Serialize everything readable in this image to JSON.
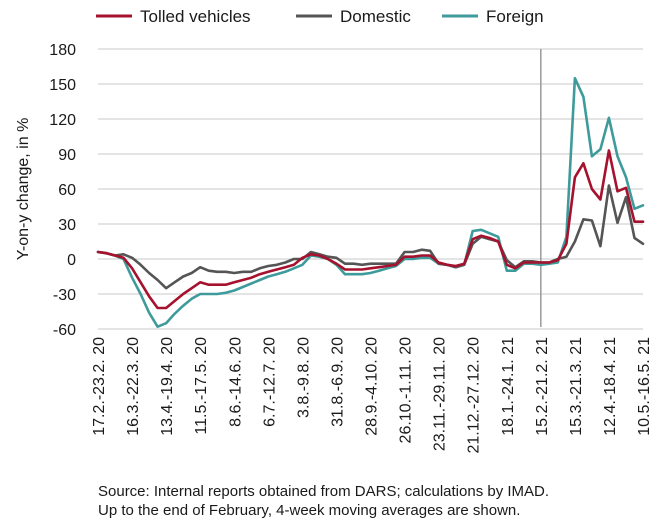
{
  "chart_data": {
    "type": "line",
    "title": "",
    "ylabel": "Y-on-y change, in %",
    "xlabel": "",
    "ylim": [
      -60,
      180
    ],
    "yticks": [
      180,
      150,
      120,
      90,
      60,
      30,
      0,
      -30,
      -60
    ],
    "grid": "horizontal",
    "legend_position": "top",
    "period_marker_after_point": 52,
    "x_tick_labels": [
      {
        "index": 0,
        "label": "17.2.-23.2. 20"
      },
      {
        "index": 4,
        "label": "16.3.-22.3. 20"
      },
      {
        "index": 8,
        "label": "13.4.-19.4. 20"
      },
      {
        "index": 12,
        "label": "11.5.-17.5. 20"
      },
      {
        "index": 16,
        "label": "8.6.-14.6. 20"
      },
      {
        "index": 20,
        "label": "6.7.-12.7. 20"
      },
      {
        "index": 24,
        "label": "3.8.-9.8. 20"
      },
      {
        "index": 28,
        "label": "31.8.-6.9. 20"
      },
      {
        "index": 32,
        "label": "28.9.-4.10. 20"
      },
      {
        "index": 36,
        "label": "26.10.-1.11. 20"
      },
      {
        "index": 40,
        "label": "23.11.-29.11. 20"
      },
      {
        "index": 44,
        "label": "21.12.-27.12. 20"
      },
      {
        "index": 48,
        "label": "18.1.-24.1. 21"
      },
      {
        "index": 52,
        "label": "15.2.-21.2. 21"
      },
      {
        "index": 56,
        "label": "15.3.-21.3. 21"
      },
      {
        "index": 60,
        "label": "12.4.-18.4. 21"
      },
      {
        "index": 64,
        "label": "10.5.-16.5. 21"
      }
    ],
    "series": [
      {
        "name": "Tolled vehicles",
        "color": "#a6112e",
        "values": [
          6,
          5,
          3,
          1,
          -8,
          -20,
          -32,
          -42,
          -42,
          -36,
          -30,
          -25,
          -20,
          -22,
          -22,
          -22,
          -20,
          -18,
          -16,
          -13,
          -11,
          -9,
          -7,
          -5,
          1,
          4,
          3,
          0,
          -4,
          -9,
          -9,
          -9,
          -8,
          -7,
          -6,
          -5,
          2,
          2,
          3,
          3,
          -3,
          -5,
          -6,
          -4,
          17,
          20,
          18,
          15,
          -5,
          -8,
          -3,
          -3,
          -3,
          -3,
          -1,
          13,
          70,
          82,
          60,
          51,
          93,
          58,
          61,
          32,
          32
        ]
      },
      {
        "name": "Domestic",
        "color": "#555555",
        "values": [
          6,
          5,
          3,
          4,
          1,
          -5,
          -12,
          -18,
          -25,
          -20,
          -15,
          -12,
          -7,
          -10,
          -11,
          -11,
          -12,
          -11,
          -11,
          -8,
          -6,
          -5,
          -3,
          0,
          0,
          6,
          4,
          2,
          1,
          -4,
          -4,
          -5,
          -4,
          -4,
          -4,
          -4,
          6,
          6,
          8,
          7,
          -4,
          -5,
          -7,
          -5,
          13,
          19,
          17,
          15,
          -1,
          -7,
          -2,
          -2,
          -3,
          -3,
          0,
          2,
          15,
          34,
          33,
          11,
          63,
          31,
          53,
          18,
          13
        ]
      },
      {
        "name": "Foreign",
        "color": "#3f9b9b",
        "values": [
          6,
          5,
          3,
          0,
          -16,
          -30,
          -46,
          -58,
          -55,
          -47,
          -40,
          -34,
          -30,
          -30,
          -30,
          -29,
          -27,
          -24,
          -21,
          -18,
          -15,
          -13,
          -11,
          -8,
          -5,
          3,
          2,
          0,
          -5,
          -13,
          -13,
          -13,
          -12,
          -10,
          -8,
          -6,
          0,
          0,
          1,
          1,
          -4,
          -5,
          -7,
          -5,
          24,
          25,
          22,
          19,
          -10,
          -10,
          -4,
          -4,
          -5,
          -4,
          -3,
          19,
          155,
          139,
          88,
          94,
          121,
          88,
          70,
          43,
          46
        ]
      }
    ]
  },
  "source_lines": [
    "Source: Internal reports obtained from DARS; calculations by IMAD.",
    "Up to the end of February, 4-week moving averages are shown."
  ]
}
